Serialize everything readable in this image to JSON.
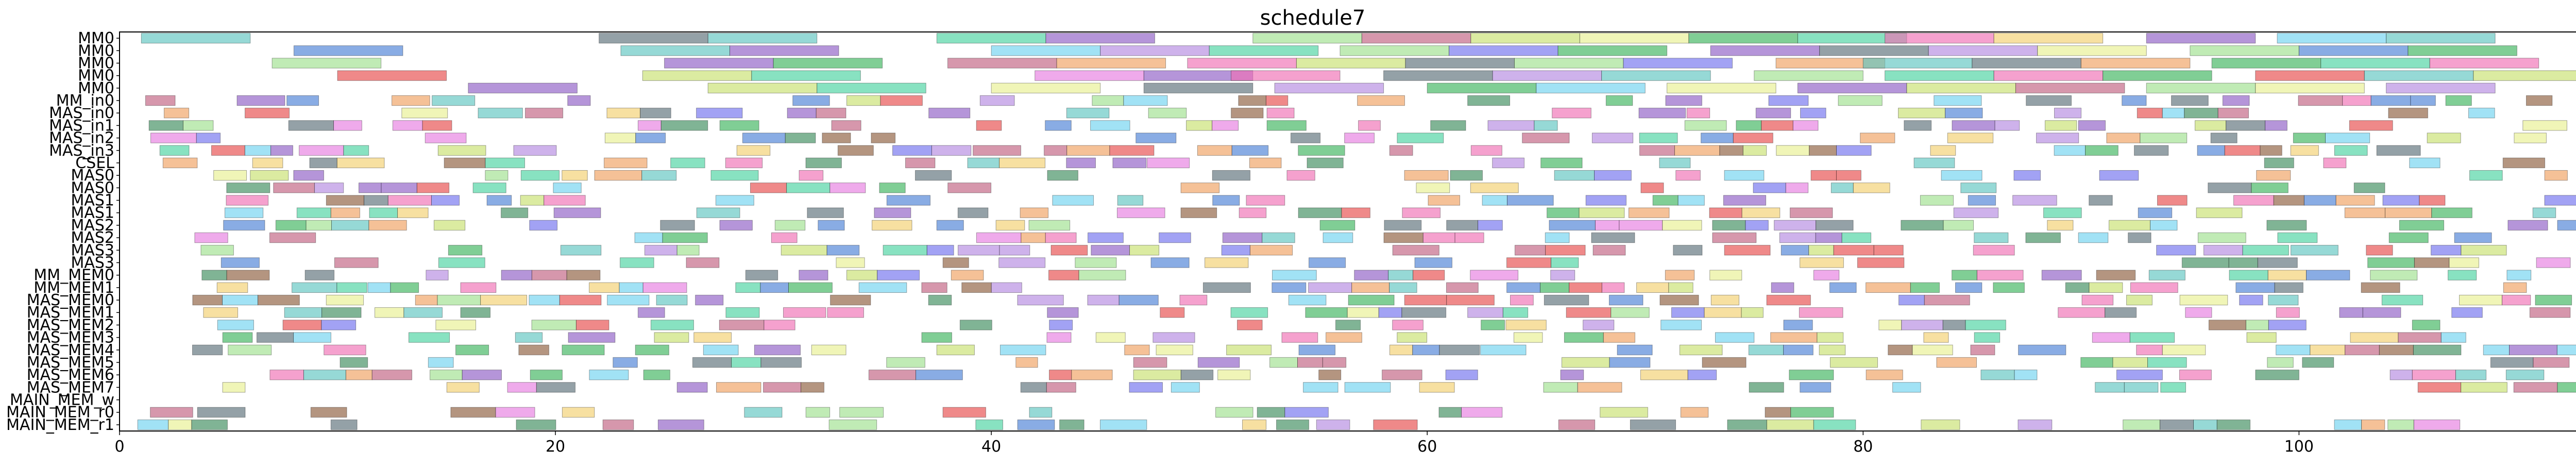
{
  "chart_data": {
    "type": "gantt",
    "title": "schedule7",
    "xlabel": "",
    "ylabel": "",
    "xlim": [
      0,
      114.6
    ],
    "x_ticks": [
      0,
      20,
      40,
      60,
      80,
      100
    ],
    "x_tick_labels": [
      "0",
      "20",
      "40",
      "60",
      "80",
      "100"
    ],
    "grid": false,
    "legend": "none",
    "rows": [
      "MM0",
      "MM0",
      "MM0",
      "MM0",
      "MM0",
      "MM_in0",
      "MAS_in0",
      "MAS_in1",
      "MAS_in2",
      "MAS_in3",
      "CSEL",
      "MAS0",
      "MAS0",
      "MAS1",
      "MAS1",
      "MAS2",
      "MAS2",
      "MAS3",
      "MAS3",
      "MM_MEM0",
      "MM_MEM1",
      "MAS_MEM0",
      "MAS_MEM1",
      "MAS_MEM2",
      "MAS_MEM3",
      "MAS_MEM4",
      "MAS_MEM5",
      "MAS_MEM6",
      "MAS_MEM7",
      "MAIN_MEM_w",
      "MAIN_MEM_r0",
      "MAIN_MEM_r1"
    ],
    "palette": [
      "#5ec4c0",
      "#4a7fd6",
      "#e64a4a",
      "#8e5cc4",
      "#f0a060",
      "#9ee08e",
      "#3cb45c",
      "#e67de0",
      "#5a6f78",
      "#c8e06e",
      "#f2d06e",
      "#6ed2f0",
      "#b489e0",
      "#f06eb4",
      "#48d2a0",
      "#8c5c3c",
      "#7070ee",
      "#e8f090",
      "#3c8c5c",
      "#c06080"
    ],
    "tasks": [
      {
        "row": 0,
        "start": 1.0,
        "end": 6.0,
        "c": 0
      },
      {
        "row": 0,
        "start": 22.0,
        "end": 27.0,
        "c": 8
      },
      {
        "row": 0,
        "start": 27.0,
        "end": 32.0,
        "c": 0
      },
      {
        "row": 0,
        "start": 37.5,
        "end": 42.5,
        "c": 14
      },
      {
        "row": 0,
        "start": 42.5,
        "end": 47.5,
        "c": 3
      },
      {
        "row": 0,
        "start": 52.0,
        "end": 57.0,
        "c": 5
      },
      {
        "row": 0,
        "start": 57.0,
        "end": 62.0,
        "c": 19
      },
      {
        "row": 0,
        "start": 62.0,
        "end": 67.0,
        "c": 9
      },
      {
        "row": 0,
        "start": 67.0,
        "end": 72.0,
        "c": 17
      },
      {
        "row": 0,
        "start": 72.0,
        "end": 77.0,
        "c": 6
      },
      {
        "row": 0,
        "start": 77.0,
        "end": 82.0,
        "c": 14
      },
      {
        "row": 0,
        "start": 81.0,
        "end": 86.0,
        "c": 13
      },
      {
        "row": 0,
        "start": 86.0,
        "end": 91.0,
        "c": 10
      },
      {
        "row": 0,
        "start": 93.0,
        "end": 98.0,
        "c": 3
      },
      {
        "row": 0,
        "start": 99.0,
        "end": 104.0,
        "c": 11
      },
      {
        "row": 0,
        "start": 104.0,
        "end": 109.0,
        "c": 0
      },
      {
        "row": 1,
        "start": 8.0,
        "end": 13.0,
        "c": 1
      },
      {
        "row": 1,
        "start": 23.0,
        "end": 28.0,
        "c": 0
      },
      {
        "row": 1,
        "start": 28.0,
        "end": 33.0,
        "c": 3
      },
      {
        "row": 1,
        "start": 40.0,
        "end": 45.0,
        "c": 11
      },
      {
        "row": 1,
        "start": 45.0,
        "end": 50.0,
        "c": 12
      },
      {
        "row": 1,
        "start": 50.0,
        "end": 55.0,
        "c": 14
      },
      {
        "row": 1,
        "start": 56.0,
        "end": 61.0,
        "c": 5
      },
      {
        "row": 1,
        "start": 61.0,
        "end": 66.0,
        "c": 16
      },
      {
        "row": 1,
        "start": 66.0,
        "end": 71.0,
        "c": 6
      },
      {
        "row": 1,
        "start": 73.0,
        "end": 78.0,
        "c": 3
      },
      {
        "row": 1,
        "start": 78.0,
        "end": 83.0,
        "c": 8
      },
      {
        "row": 1,
        "start": 83.0,
        "end": 88.0,
        "c": 12
      },
      {
        "row": 1,
        "start": 88.0,
        "end": 93.0,
        "c": 17
      },
      {
        "row": 1,
        "start": 95.0,
        "end": 100.0,
        "c": 5
      },
      {
        "row": 1,
        "start": 100.0,
        "end": 105.0,
        "c": 1
      },
      {
        "row": 1,
        "start": 105.0,
        "end": 110.0,
        "c": 6
      },
      {
        "row": 2,
        "start": 7.0,
        "end": 12.0,
        "c": 5
      },
      {
        "row": 2,
        "start": 25.0,
        "end": 30.0,
        "c": 3
      },
      {
        "row": 2,
        "start": 30.0,
        "end": 35.0,
        "c": 6
      },
      {
        "row": 2,
        "start": 38.0,
        "end": 43.0,
        "c": 19
      },
      {
        "row": 2,
        "start": 43.0,
        "end": 48.0,
        "c": 4
      },
      {
        "row": 2,
        "start": 49.0,
        "end": 54.0,
        "c": 13
      },
      {
        "row": 2,
        "start": 54.0,
        "end": 59.0,
        "c": 9
      },
      {
        "row": 2,
        "start": 59.0,
        "end": 64.0,
        "c": 8
      },
      {
        "row": 2,
        "start": 64.0,
        "end": 69.0,
        "c": 5
      },
      {
        "row": 2,
        "start": 69.0,
        "end": 74.0,
        "c": 16
      },
      {
        "row": 2,
        "start": 76.0,
        "end": 81.0,
        "c": 4
      },
      {
        "row": 2,
        "start": 80.0,
        "end": 85.0,
        "c": 0
      },
      {
        "row": 2,
        "start": 85.0,
        "end": 90.0,
        "c": 8
      },
      {
        "row": 2,
        "start": 90.0,
        "end": 95.0,
        "c": 4
      },
      {
        "row": 2,
        "start": 96.0,
        "end": 101.0,
        "c": 6
      },
      {
        "row": 2,
        "start": 101.0,
        "end": 106.0,
        "c": 14
      },
      {
        "row": 2,
        "start": 106.0,
        "end": 111.0,
        "c": 13
      },
      {
        "row": 3,
        "start": 10.0,
        "end": 15.0,
        "c": 2
      },
      {
        "row": 3,
        "start": 24.0,
        "end": 29.0,
        "c": 9
      },
      {
        "row": 3,
        "start": 29.0,
        "end": 34.0,
        "c": 14
      },
      {
        "row": 3,
        "start": 42.0,
        "end": 47.0,
        "c": 7
      },
      {
        "row": 3,
        "start": 47.0,
        "end": 52.0,
        "c": 3
      },
      {
        "row": 3,
        "start": 51.0,
        "end": 56.0,
        "c": 13
      },
      {
        "row": 3,
        "start": 58.0,
        "end": 63.0,
        "c": 8
      },
      {
        "row": 3,
        "start": 63.0,
        "end": 68.0,
        "c": 12
      },
      {
        "row": 3,
        "start": 68.0,
        "end": 73.0,
        "c": 0
      },
      {
        "row": 3,
        "start": 75.0,
        "end": 80.0,
        "c": 5
      },
      {
        "row": 3,
        "start": 81.0,
        "end": 86.0,
        "c": 14
      },
      {
        "row": 3,
        "start": 86.0,
        "end": 91.0,
        "c": 13
      },
      {
        "row": 3,
        "start": 91.0,
        "end": 96.0,
        "c": 6
      },
      {
        "row": 3,
        "start": 98.0,
        "end": 103.0,
        "c": 2
      },
      {
        "row": 3,
        "start": 103.0,
        "end": 108.0,
        "c": 0
      },
      {
        "row": 3,
        "start": 108.0,
        "end": 113.0,
        "c": 9
      },
      {
        "row": 4,
        "start": 16.0,
        "end": 21.0,
        "c": 3
      },
      {
        "row": 4,
        "start": 27.0,
        "end": 32.0,
        "c": 9
      },
      {
        "row": 4,
        "start": 32.0,
        "end": 37.0,
        "c": 14
      },
      {
        "row": 4,
        "start": 40.0,
        "end": 45.0,
        "c": 17
      },
      {
        "row": 4,
        "start": 47.0,
        "end": 52.0,
        "c": 8
      },
      {
        "row": 4,
        "start": 53.0,
        "end": 58.0,
        "c": 12
      },
      {
        "row": 4,
        "start": 60.0,
        "end": 65.0,
        "c": 6
      },
      {
        "row": 4,
        "start": 65.0,
        "end": 70.0,
        "c": 11
      },
      {
        "row": 4,
        "start": 71.0,
        "end": 76.0,
        "c": 17
      },
      {
        "row": 4,
        "start": 77.0,
        "end": 82.0,
        "c": 3
      },
      {
        "row": 4,
        "start": 82.0,
        "end": 87.0,
        "c": 9
      },
      {
        "row": 4,
        "start": 87.0,
        "end": 92.0,
        "c": 19
      },
      {
        "row": 4,
        "start": 93.0,
        "end": 98.0,
        "c": 5
      },
      {
        "row": 4,
        "start": 98.0,
        "end": 103.0,
        "c": 17
      },
      {
        "row": 4,
        "start": 104.0,
        "end": 109.0,
        "c": 12
      }
    ]
  }
}
